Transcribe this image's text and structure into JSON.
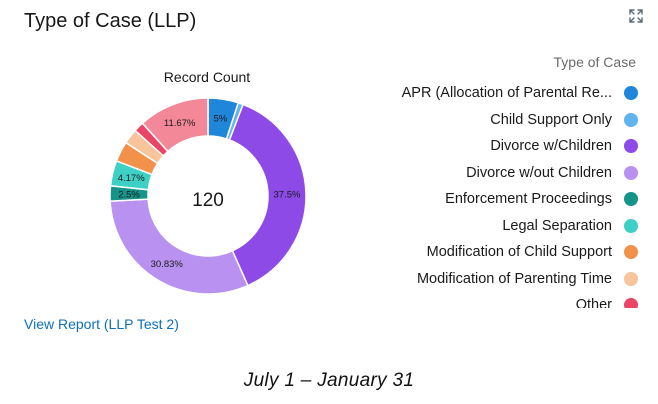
{
  "card": {
    "title": "Type of Case (LLP)",
    "expand_icon": "expand-arrows-icon",
    "report_link": "View Report (LLP Test 2)",
    "footer_date": "July 1 – January  31"
  },
  "chart_data": {
    "type": "pie",
    "donut": true,
    "title": "Record Count",
    "total_label": "120",
    "legend_title": "Type of Case",
    "legend_position": "right",
    "slices": [
      {
        "label": "APR (Allocation of Parental Re...",
        "value": 5,
        "display": "5%",
        "color": "#1f86d9"
      },
      {
        "label": "Child Support Only",
        "value": 0.83,
        "display": "",
        "color": "#62b4ef"
      },
      {
        "label": "Divorce w/Children",
        "value": 37.5,
        "display": "37.5%",
        "color": "#8d4ae6"
      },
      {
        "label": "Divorce w/out Children",
        "value": 30.83,
        "display": "30.83%",
        "color": "#b991f0"
      },
      {
        "label": "Enforcement Proceedings",
        "value": 2.5,
        "display": "2.5%",
        "color": "#17948a"
      },
      {
        "label": "Legal Separation",
        "value": 4.17,
        "display": "4.17%",
        "color": "#3fd0c5"
      },
      {
        "label": "Modification of Child Support",
        "value": 3.33,
        "display": "",
        "color": "#f2914a"
      },
      {
        "label": "Modification of Parenting Time",
        "value": 2.5,
        "display": "",
        "color": "#f7c49b"
      },
      {
        "label": "Other",
        "value": 1.67,
        "display": "",
        "color": "#ea4566"
      },
      {
        "label": "",
        "value": 11.67,
        "display": "11.67%",
        "color": "#f28898"
      }
    ]
  }
}
